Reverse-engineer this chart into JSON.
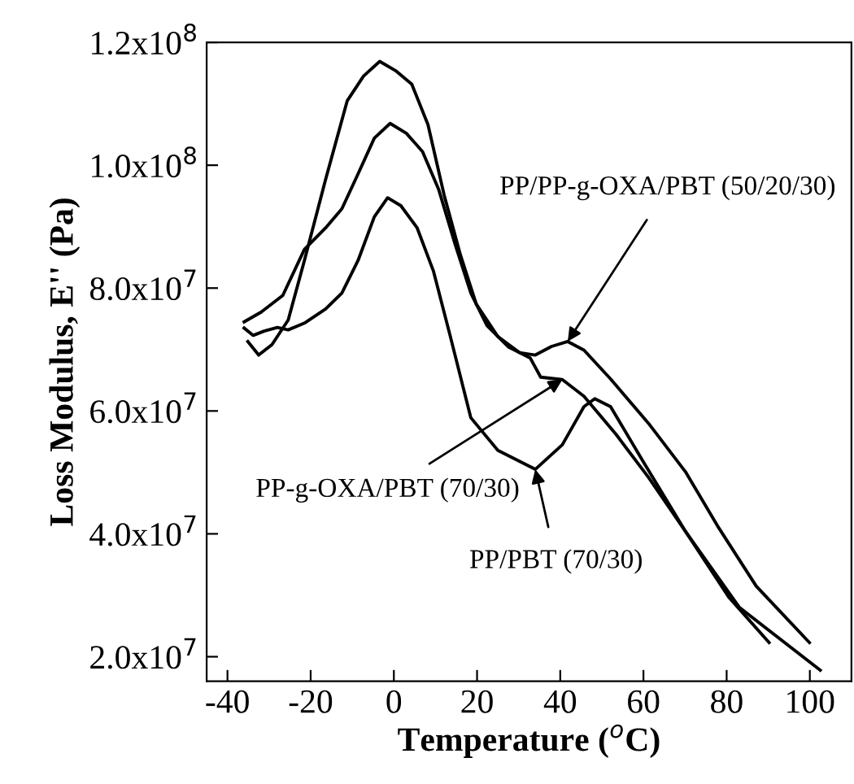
{
  "chart_data": {
    "type": "line",
    "xlabel": "Temperature ($^{o}$C)",
    "ylabel": "Loss Modulus, E'' (Pa)",
    "series": [
      {
        "color": "#000000",
        "x": [
          -35.1,
          -32.5,
          -29.3,
          -25.4,
          -21.5,
          -16.4,
          -11.2,
          -7.3,
          -3.4,
          0.4,
          4.3,
          8.2,
          12.1,
          16.0,
          19.8,
          25.0,
          30.2,
          34.0,
          37.9,
          41.8,
          45.7,
          52.1,
          61.2,
          70.1,
          77.8,
          87.1,
          99.9
        ],
        "values": [
          71300000,
          69100000,
          70800000,
          74800000,
          84500000,
          97700000,
          110500000,
          114500000,
          116900000,
          115400000,
          113200000,
          106600000,
          95100000,
          85400000,
          77400000,
          72100000,
          69500000,
          69100000,
          70500000,
          71300000,
          69900000,
          65200000,
          58000000,
          50100000,
          41300000,
          31500000,
          22300000
        ]
      },
      {
        "color": "#000000",
        "x": [
          -36.0,
          -31.9,
          -26.7,
          -21.5,
          -16.4,
          -12.5,
          -8.6,
          -4.7,
          -0.9,
          3.0,
          6.9,
          10.8,
          14.7,
          18.5,
          22.4,
          27.6,
          32.8,
          35.3,
          40.5,
          45.7,
          53.4,
          61.2,
          70.2,
          80.5,
          90.2
        ],
        "values": [
          74500000,
          76100000,
          78800000,
          86300000,
          89800000,
          92900000,
          98600000,
          104400000,
          106800000,
          105200000,
          102200000,
          96000000,
          87200000,
          79200000,
          73900000,
          70400000,
          68600000,
          65500000,
          65100000,
          62400000,
          56200000,
          49200000,
          40300000,
          29700000,
          22300000
        ]
      },
      {
        "color": "#000000",
        "x": [
          -36.0,
          -33.8,
          -31.2,
          -28.0,
          -25.4,
          -21.5,
          -16.4,
          -12.5,
          -8.6,
          -4.7,
          -1.5,
          1.7,
          5.6,
          9.5,
          13.4,
          18.5,
          25.0,
          34.0,
          40.5,
          45.7,
          48.3,
          52.1,
          59.9,
          70.2,
          83.1,
          102.5
        ],
        "values": [
          73500000,
          72300000,
          73000000,
          73600000,
          73200000,
          74300000,
          76600000,
          79200000,
          84500000,
          91600000,
          94700000,
          93400000,
          89800000,
          82800000,
          72600000,
          58900000,
          53600000,
          50500000,
          54500000,
          60700000,
          62000000,
          60700000,
          51800000,
          40300000,
          28000000,
          17800000
        ]
      }
    ],
    "xlim": [
      -45,
      110
    ],
    "xticks": [
      -40,
      -20,
      0,
      20,
      40,
      60,
      80,
      100
    ],
    "ylim": [
      16000000,
      120000000
    ],
    "yticks": [
      {
        "value": 20000000,
        "label": "2.0x10$^{7}$"
      },
      {
        "value": 40000000,
        "label": "4.0x10$^{7}$"
      },
      {
        "value": 60000000,
        "label": "6.0x10$^{7}$"
      },
      {
        "value": 80000000,
        "label": "8.0x10$^{7}$"
      },
      {
        "value": 100000000,
        "label": "1.0x10$^{8}$"
      },
      {
        "value": 120000000,
        "label": "1.2x10$^{8}$"
      }
    ],
    "annotations": [
      {
        "text": "PP/PP-g-OXA/PBT (50/20/30)",
        "x": 41.8,
        "y": 71300000
      },
      {
        "text": "PP-g-OXA/PBT (70/30)",
        "x": 40.5,
        "y": 65100000
      },
      {
        "text": "PP/PBT (70/30)",
        "x": 34.0,
        "y": 50500000
      }
    ],
    "grid": false,
    "legend": false,
    "marker": "none",
    "line_style": "solid"
  }
}
